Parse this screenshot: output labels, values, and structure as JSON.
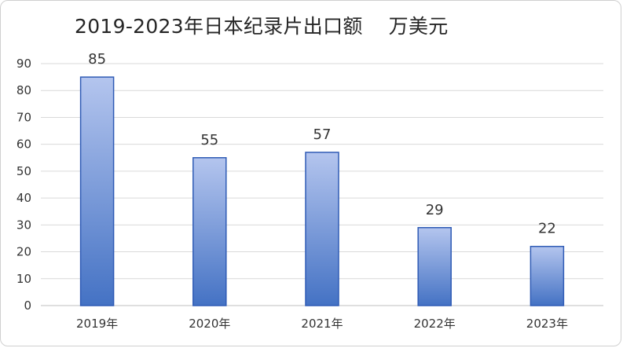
{
  "chart_data": {
    "type": "bar",
    "title": "2019-2023年日本纪录片出口额    万美元",
    "categories": [
      "2019年",
      "2020年",
      "2021年",
      "2022年",
      "2023年"
    ],
    "values": [
      85,
      55,
      57,
      29,
      22
    ],
    "data_labels": [
      "85",
      "55",
      "57",
      "29",
      "22"
    ],
    "y_ticks": [
      "0",
      "10",
      "20",
      "30",
      "40",
      "50",
      "60",
      "70",
      "80",
      "90"
    ],
    "ylim": [
      0,
      90
    ],
    "xlabel": "",
    "ylabel": "",
    "grid": true,
    "legend": "none",
    "colors": {
      "bar_top": "#b4c5ee",
      "bar_bottom": "#4472c4",
      "bar_border": "#2f5bb5",
      "grid": "#d9d9d9",
      "axis": "#bfbfbf"
    }
  }
}
